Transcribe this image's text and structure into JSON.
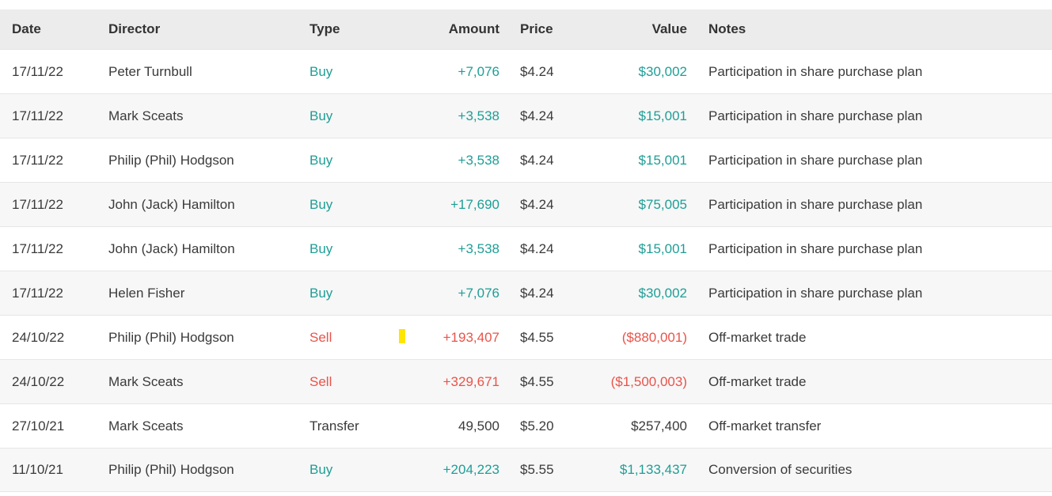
{
  "table": {
    "columns": [
      "Date",
      "Director",
      "Type",
      "Amount",
      "Price",
      "Value",
      "Notes"
    ],
    "rows": [
      {
        "date": "17/11/22",
        "director": "Peter Turnbull",
        "type": "Buy",
        "amount": "+7,076",
        "price": "$4.24",
        "value": "$30,002",
        "notes": "Participation in share purchase plan"
      },
      {
        "date": "17/11/22",
        "director": "Mark Sceats",
        "type": "Buy",
        "amount": "+3,538",
        "price": "$4.24",
        "value": "$15,001",
        "notes": "Participation in share purchase plan"
      },
      {
        "date": "17/11/22",
        "director": "Philip (Phil) Hodgson",
        "type": "Buy",
        "amount": "+3,538",
        "price": "$4.24",
        "value": "$15,001",
        "notes": "Participation in share purchase plan"
      },
      {
        "date": "17/11/22",
        "director": "John (Jack) Hamilton",
        "type": "Buy",
        "amount": "+17,690",
        "price": "$4.24",
        "value": "$75,005",
        "notes": "Participation in share purchase plan"
      },
      {
        "date": "17/11/22",
        "director": "John (Jack) Hamilton",
        "type": "Buy",
        "amount": "+3,538",
        "price": "$4.24",
        "value": "$15,001",
        "notes": "Participation in share purchase plan"
      },
      {
        "date": "17/11/22",
        "director": "Helen Fisher",
        "type": "Buy",
        "amount": "+7,076",
        "price": "$4.24",
        "value": "$30,002",
        "notes": "Participation in share purchase plan"
      },
      {
        "date": "24/10/22",
        "director": "Philip (Phil) Hodgson",
        "type": "Sell",
        "amount": "+193,407",
        "price": "$4.55",
        "value": "($880,001)",
        "notes": "Off-market trade"
      },
      {
        "date": "24/10/22",
        "director": "Mark Sceats",
        "type": "Sell",
        "amount": "+329,671",
        "price": "$4.55",
        "value": "($1,500,003)",
        "notes": "Off-market trade"
      },
      {
        "date": "27/10/21",
        "director": "Mark Sceats",
        "type": "Transfer",
        "amount": "49,500",
        "price": "$5.20",
        "value": "$257,400",
        "notes": "Off-market transfer"
      },
      {
        "date": "11/10/21",
        "director": "Philip (Phil) Hodgson",
        "type": "Buy",
        "amount": "+204,223",
        "price": "$5.55",
        "value": "$1,133,437",
        "notes": "Conversion of securities"
      }
    ]
  },
  "colors": {
    "buy": "#1E9E96",
    "sell": "#E8544A",
    "neutral": "#3A3A3A",
    "marker": "#FFE500"
  }
}
